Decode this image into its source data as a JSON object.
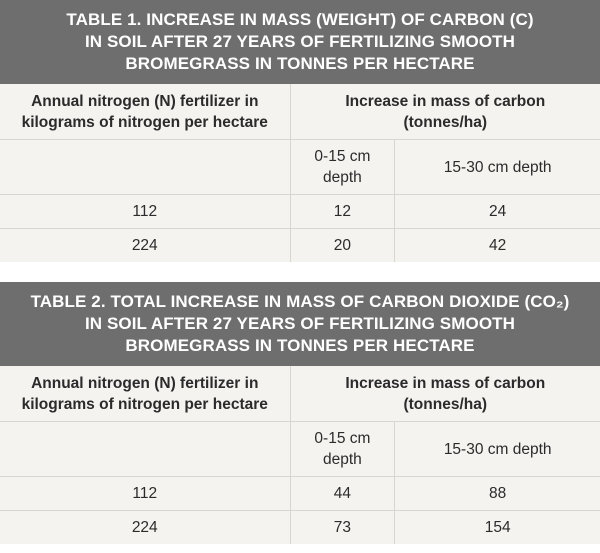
{
  "table1": {
    "title_lines": [
      "TABLE 1. INCREASE IN MASS (WEIGHT) OF CARBON (C)",
      "IN SOIL AFTER 27 YEARS OF FERTILIZING SMOOTH",
      "BROMEGRASS IN TONNES PER HECTARE"
    ],
    "col1_header": [
      "Annual nitrogen (N) fertilizer in",
      "kilograms of nitrogen per hectare"
    ],
    "group_header": [
      "Increase in mass of carbon",
      "(tonnes/ha)"
    ],
    "sub_header_1": [
      "0-15 cm",
      "depth"
    ],
    "sub_header_2": "15-30 cm depth",
    "rows": [
      {
        "n": "112",
        "d1": "12",
        "d2": "24"
      },
      {
        "n": "224",
        "d1": "20",
        "d2": "42"
      }
    ]
  },
  "table2": {
    "title_lines": [
      "TABLE 2. TOTAL INCREASE IN MASS OF CARBON DIOXIDE (CO₂)",
      "IN SOIL AFTER 27 YEARS OF FERTILIZING SMOOTH",
      "BROMEGRASS IN TONNES PER HECTARE"
    ],
    "col1_header": [
      "Annual nitrogen (N) fertilizer in",
      "kilograms of nitrogen per hectare"
    ],
    "group_header": [
      "Increase in mass of carbon",
      "(tonnes/ha)"
    ],
    "sub_header_1": [
      "0-15 cm",
      "depth"
    ],
    "sub_header_2": "15-30 cm depth",
    "rows": [
      {
        "n": "112",
        "d1": "44",
        "d2": "88"
      },
      {
        "n": "224",
        "d1": "73",
        "d2": "154"
      }
    ]
  }
}
